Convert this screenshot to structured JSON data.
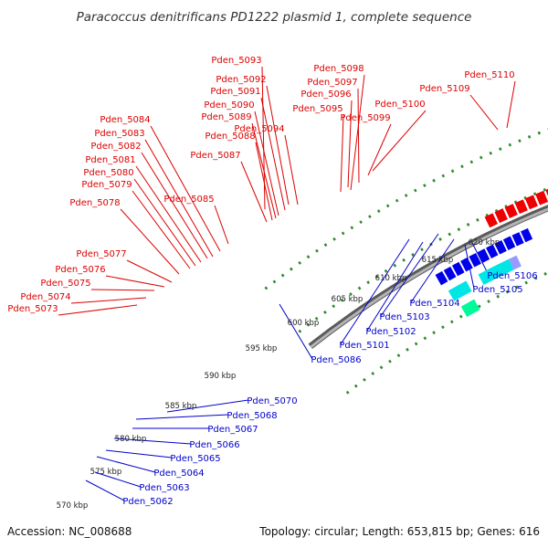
{
  "title": "Paracoccus denitrificans PD1222 plasmid 1, complete sequence",
  "footer": {
    "accession": "Accession: NC_008688",
    "summary": "Topology: circular; Length: 653,815 bp; Genes: 616"
  },
  "colors": {
    "forward_label": "#dd0000",
    "reverse_label": "#0000cc",
    "backbone": "#8c8c8c",
    "dotted_ring": "#2e8b2e"
  },
  "tick_labels": [
    "570 kbp",
    "575 kbp",
    "580 kbp",
    "585 kbp",
    "590 kbp",
    "595 kbp",
    "600 kbp",
    "605 kbp",
    "610 kbp",
    "615 kbp",
    "620 kbp"
  ],
  "forward_labels": [
    "Pden_5093",
    "Pden_5098",
    "Pden_5110",
    "Pden_5092",
    "Pden_5097",
    "Pden_5109",
    "Pden_5091",
    "Pden_5096",
    "Pden_5090",
    "Pden_5100",
    "Pden_5095",
    "Pden_5089",
    "Pden_5099",
    "Pden_5084",
    "Pden_5094",
    "Pden_5083",
    "Pden_5088",
    "Pden_5082",
    "Pden_5087",
    "Pden_5081",
    "Pden_5080",
    "Pden_5079",
    "Pden_5085",
    "Pden_5078",
    "Pden_5077",
    "Pden_5076",
    "Pden_5075",
    "Pden_5074",
    "Pden_5073"
  ],
  "reverse_labels": [
    "Pden_5106",
    "Pden_5105",
    "Pden_5104",
    "Pden_5103",
    "Pden_5102",
    "Pden_5101",
    "Pden_5086",
    "Pden_5070",
    "Pden_5068",
    "Pden_5067",
    "Pden_5066",
    "Pden_5065",
    "Pden_5064",
    "Pden_5063",
    "Pden_5062"
  ]
}
